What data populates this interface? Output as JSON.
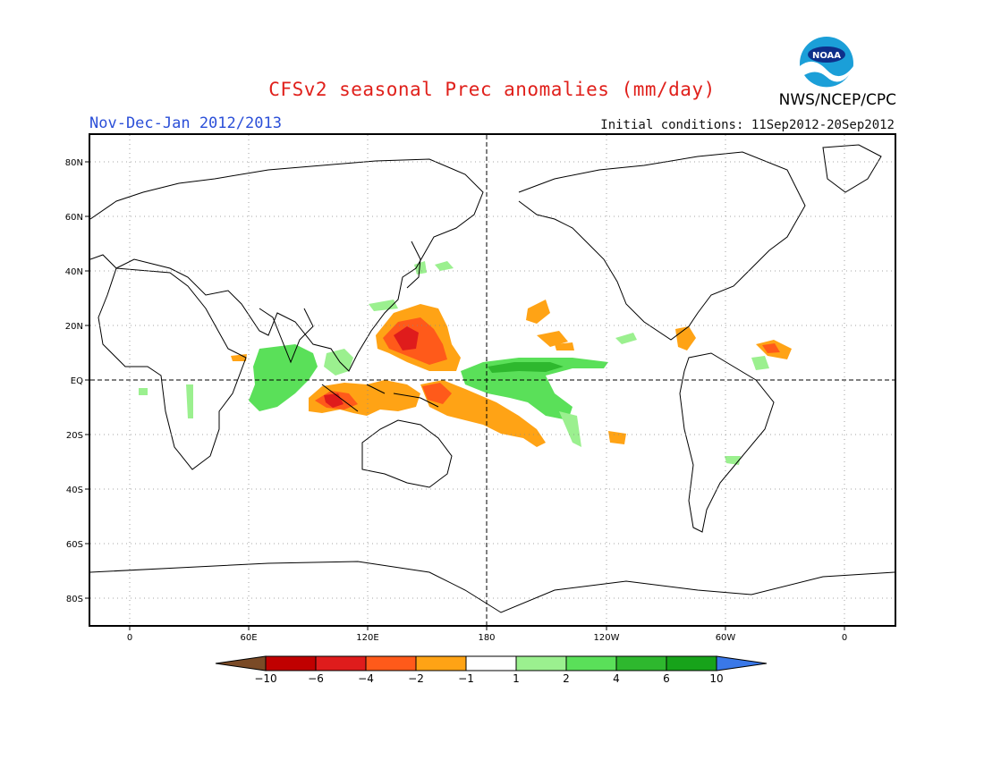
{
  "header": {
    "title": "CFSv2 seasonal Prec anomalies (mm/day)",
    "period": "Nov-Dec-Jan 2012/2013",
    "initial_conditions": "Initial conditions: 11Sep2012-20Sep2012",
    "agency": "NWS/NCEP/CPC",
    "logo_text": "NOAA",
    "logo_name": "noaa-logo"
  },
  "map": {
    "lat_labels": [
      "80N",
      "60N",
      "40N",
      "20N",
      "EQ",
      "20S",
      "40S",
      "60S",
      "80S"
    ],
    "lon_labels": [
      "0",
      "60E",
      "120E",
      "180",
      "120W",
      "60W",
      "0"
    ]
  },
  "colorbar": {
    "labels": [
      "-10",
      "-6",
      "-4",
      "-2",
      "-1",
      "1",
      "2",
      "4",
      "6",
      "10"
    ],
    "colors": [
      "#7a4a26",
      "#c00000",
      "#df1c1c",
      "#ff5a1a",
      "#ffa315",
      "#ffffff",
      "#9bf08f",
      "#5ae059",
      "#2eb82e",
      "#17a31a",
      "#3a78e8"
    ]
  },
  "colors": {
    "coast": "#000000",
    "dry_light": "#ffa315",
    "dry_med": "#ff5a1a",
    "dry_strong": "#df1c1c",
    "wet_light": "#9bf08f",
    "wet_med": "#5ae059",
    "wet_strong": "#2eb82e"
  }
}
